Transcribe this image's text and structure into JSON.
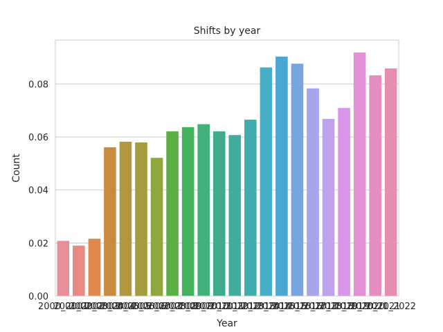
{
  "chart_data": {
    "type": "bar",
    "title": "Shifts by year",
    "xlabel": "Year",
    "ylabel": "Count",
    "categories": [
      "2000_2001",
      "2001_2002",
      "2002_2003",
      "2003_2004",
      "2004_2005",
      "2005_2006",
      "2006_2007",
      "2007_2008",
      "2008_2009",
      "2009_2010",
      "2010_2011",
      "2011_2012",
      "2012_2013",
      "2013_2014",
      "2014_2015",
      "2015_2016",
      "2016_2017",
      "2017_2018",
      "2018_2019",
      "2019_2020",
      "2020_2021",
      "2021_2022"
    ],
    "values": [
      0.0208,
      0.019,
      0.0216,
      0.0561,
      0.0582,
      0.0579,
      0.0521,
      0.0621,
      0.0637,
      0.0648,
      0.0621,
      0.0607,
      0.0665,
      0.0862,
      0.0903,
      0.0876,
      0.0783,
      0.0668,
      0.0709,
      0.0918,
      0.0832,
      0.0858
    ],
    "colors": [
      "#e8909a",
      "#e78a84",
      "#e0894f",
      "#c98b3f",
      "#b1973e",
      "#a39d3e",
      "#8da63e",
      "#5bb043",
      "#45b35c",
      "#42b17c",
      "#3fad8d",
      "#3fac9c",
      "#40acae",
      "#46aec7",
      "#4aa6d2",
      "#76a5e0",
      "#a7a6ea",
      "#bea3ea",
      "#d996ea",
      "#e58fd7",
      "#e48fc0",
      "#e68db1"
    ],
    "ylim": [
      0,
      0.0965
    ],
    "yticks": [
      "0.00",
      "0.02",
      "0.04",
      "0.06",
      "0.08"
    ],
    "grid": true,
    "legend": "none"
  }
}
